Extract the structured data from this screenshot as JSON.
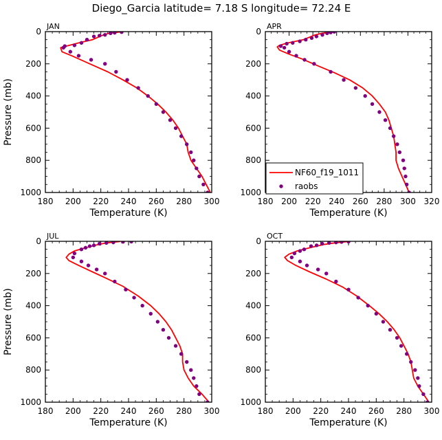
{
  "figure_title": "Diego_Garcia   latitude= 7.18 S longitude= 72.24 E",
  "legend": {
    "model_label": "NF60_f19_1011",
    "obs_label": "raobs",
    "placement": "lower-left of APR panel"
  },
  "colors": {
    "model": "#ff0000",
    "obs": "#800080",
    "axis": "#000000"
  },
  "chart_data": [
    {
      "type": "line+scatter",
      "title": "JAN",
      "xlabel": "Temperature (K)",
      "ylabel": "Pressure (mb)",
      "xlim": [
        180,
        300
      ],
      "ylim": [
        1000,
        0
      ],
      "xticks": [
        180,
        200,
        220,
        240,
        260,
        280,
        300
      ],
      "yticks": [
        0,
        200,
        400,
        600,
        800,
        1000
      ],
      "series": [
        {
          "name": "NF60_f19_1011",
          "kind": "line",
          "points": [
            [
              235,
              1
            ],
            [
              226,
              10
            ],
            [
              222,
              20
            ],
            [
              214,
              50
            ],
            [
              204,
              70
            ],
            [
              195,
              90
            ],
            [
              191,
              100
            ],
            [
              192,
              125
            ],
            [
              199,
              150
            ],
            [
              212,
              200
            ],
            [
              225,
              250
            ],
            [
              236,
              300
            ],
            [
              246,
              350
            ],
            [
              254,
              400
            ],
            [
              261,
              450
            ],
            [
              267,
              500
            ],
            [
              272,
              550
            ],
            [
              276,
              600
            ],
            [
              279,
              650
            ],
            [
              282,
              700
            ],
            [
              283,
              750
            ],
            [
              285,
              800
            ],
            [
              289,
              850
            ],
            [
              293,
              900
            ],
            [
              296,
              950
            ],
            [
              299,
              1000
            ]
          ]
        },
        {
          "name": "raobs",
          "kind": "scatter",
          "points": [
            [
              235,
              3
            ],
            [
              230,
              7
            ],
            [
              227,
              10
            ],
            [
              223,
              20
            ],
            [
              219,
              25
            ],
            [
              215,
              30
            ],
            [
              210,
              50
            ],
            [
              206,
              70
            ],
            [
              201,
              85
            ],
            [
              194,
              90
            ],
            [
              193,
              100
            ],
            [
              198,
              125
            ],
            [
              204,
              150
            ],
            [
              213,
              175
            ],
            [
              223,
              200
            ],
            [
              231,
              250
            ],
            [
              239,
              300
            ],
            [
              247,
              350
            ],
            [
              254,
              400
            ],
            [
              260,
              450
            ],
            [
              265,
              500
            ],
            [
              270,
              550
            ],
            [
              274,
              600
            ],
            [
              278,
              650
            ],
            [
              282,
              700
            ],
            [
              285,
              750
            ],
            [
              287,
              800
            ],
            [
              289,
              850
            ],
            [
              291,
              900
            ],
            [
              294,
              950
            ],
            [
              297,
              1000
            ]
          ]
        }
      ]
    },
    {
      "type": "line+scatter",
      "title": "APR",
      "xlabel": "Temperature (K)",
      "ylabel": "",
      "xlim": [
        180,
        320
      ],
      "ylim": [
        1000,
        0
      ],
      "xticks": [
        180,
        200,
        220,
        240,
        260,
        280,
        300,
        320
      ],
      "yticks": [
        0,
        200,
        400,
        600,
        800,
        1000
      ],
      "series": [
        {
          "name": "NF60_f19_1011",
          "kind": "line",
          "points": [
            [
              238,
              1
            ],
            [
              228,
              10
            ],
            [
              222,
              20
            ],
            [
              212,
              50
            ],
            [
              199,
              70
            ],
            [
              192,
              85
            ],
            [
              190,
              95
            ],
            [
              192,
              115
            ],
            [
              200,
              140
            ],
            [
              211,
              170
            ],
            [
              225,
              215
            ],
            [
              238,
              255
            ],
            [
              251,
              300
            ],
            [
              262,
              350
            ],
            [
              270,
              400
            ],
            [
              276,
              450
            ],
            [
              281,
              500
            ],
            [
              284,
              550
            ],
            [
              286,
              600
            ],
            [
              288,
              650
            ],
            [
              289,
              700
            ],
            [
              290,
              750
            ],
            [
              290,
              800
            ],
            [
              292,
              850
            ],
            [
              295,
              900
            ],
            [
              298,
              950
            ],
            [
              301,
              1000
            ]
          ]
        },
        {
          "name": "raobs",
          "kind": "scatter",
          "points": [
            [
              238,
              1
            ],
            [
              235,
              5
            ],
            [
              232,
              10
            ],
            [
              228,
              20
            ],
            [
              223,
              30
            ],
            [
              219,
              40
            ],
            [
              214,
              50
            ],
            [
              209,
              60
            ],
            [
              203,
              70
            ],
            [
              198,
              75
            ],
            [
              193,
              90
            ],
            [
              196,
              100
            ],
            [
              200,
              125
            ],
            [
              206,
              150
            ],
            [
              213,
              175
            ],
            [
              221,
              200
            ],
            [
              235,
              250
            ],
            [
              246,
              300
            ],
            [
              256,
              350
            ],
            [
              264,
              400
            ],
            [
              270,
              450
            ],
            [
              276,
              500
            ],
            [
              281,
              550
            ],
            [
              285,
              600
            ],
            [
              288,
              650
            ],
            [
              291,
              700
            ],
            [
              293,
              750
            ],
            [
              296,
              800
            ],
            [
              297,
              850
            ],
            [
              298,
              900
            ],
            [
              299,
              950
            ],
            [
              301,
              1000
            ]
          ]
        }
      ]
    },
    {
      "type": "line+scatter",
      "title": "JUL",
      "xlabel": "Temperature (K)",
      "ylabel": "Pressure (mb)",
      "xlim": [
        180,
        300
      ],
      "ylim": [
        1000,
        0
      ],
      "xticks": [
        180,
        200,
        220,
        240,
        260,
        280,
        300
      ],
      "yticks": [
        0,
        200,
        400,
        600,
        800,
        1000
      ],
      "series": [
        {
          "name": "NF60_f19_1011",
          "kind": "line",
          "points": [
            [
              234,
              1
            ],
            [
              224,
              10
            ],
            [
              218,
              20
            ],
            [
              209,
              40
            ],
            [
              201,
              60
            ],
            [
              197,
              80
            ],
            [
              195,
              100
            ],
            [
              197,
              120
            ],
            [
              204,
              150
            ],
            [
              214,
              190
            ],
            [
              224,
              230
            ],
            [
              236,
              280
            ],
            [
              247,
              340
            ],
            [
              256,
              400
            ],
            [
              262,
              450
            ],
            [
              267,
              500
            ],
            [
              271,
              550
            ],
            [
              274,
              600
            ],
            [
              277,
              650
            ],
            [
              279,
              700
            ],
            [
              279,
              750
            ],
            [
              280,
              800
            ],
            [
              283,
              850
            ],
            [
              287,
              900
            ],
            [
              293,
              950
            ],
            [
              298,
              1000
            ]
          ]
        },
        {
          "name": "raobs",
          "kind": "scatter",
          "points": [
            [
              242,
              2
            ],
            [
              236,
              3
            ],
            [
              229,
              7
            ],
            [
              224,
              10
            ],
            [
              219,
              15
            ],
            [
              215,
              25
            ],
            [
              212,
              30
            ],
            [
              209,
              40
            ],
            [
              206,
              50
            ],
            [
              201,
              75
            ],
            [
              200,
              100
            ],
            [
              206,
              125
            ],
            [
              211,
              150
            ],
            [
              217,
              175
            ],
            [
              223,
              200
            ],
            [
              230,
              250
            ],
            [
              238,
              300
            ],
            [
              244,
              350
            ],
            [
              250,
              400
            ],
            [
              256,
              450
            ],
            [
              261,
              500
            ],
            [
              265,
              550
            ],
            [
              269,
              600
            ],
            [
              274,
              650
            ],
            [
              278,
              700
            ],
            [
              282,
              750
            ],
            [
              285,
              800
            ],
            [
              287,
              850
            ],
            [
              289,
              900
            ],
            [
              291,
              950
            ],
            [
              297,
              1000
            ]
          ]
        }
      ]
    },
    {
      "type": "line+scatter",
      "title": "OCT",
      "xlabel": "Temperature (K)",
      "ylabel": "",
      "xlim": [
        180,
        300
      ],
      "ylim": [
        1000,
        0
      ],
      "xticks": [
        180,
        200,
        220,
        240,
        260,
        280,
        300
      ],
      "yticks": [
        0,
        200,
        400,
        600,
        800,
        1000
      ],
      "series": [
        {
          "name": "NF60_f19_1011",
          "kind": "line",
          "points": [
            [
              240,
              1
            ],
            [
              230,
              10
            ],
            [
              222,
              20
            ],
            [
              212,
              40
            ],
            [
              203,
              60
            ],
            [
              197,
              80
            ],
            [
              194,
              100
            ],
            [
              196,
              120
            ],
            [
              202,
              150
            ],
            [
              212,
              190
            ],
            [
              224,
              235
            ],
            [
              236,
              285
            ],
            [
              246,
              340
            ],
            [
              255,
              400
            ],
            [
              262,
              450
            ],
            [
              268,
              500
            ],
            [
              273,
              550
            ],
            [
              277,
              600
            ],
            [
              280,
              650
            ],
            [
              283,
              700
            ],
            [
              285,
              750
            ],
            [
              286,
              800
            ],
            [
              287,
              850
            ],
            [
              290,
              900
            ],
            [
              294,
              950
            ],
            [
              298,
              1000
            ]
          ]
        },
        {
          "name": "raobs",
          "kind": "scatter",
          "points": [
            [
              240,
              2
            ],
            [
              235,
              4
            ],
            [
              231,
              7
            ],
            [
              226,
              10
            ],
            [
              221,
              15
            ],
            [
              217,
              25
            ],
            [
              213,
              30
            ],
            [
              208,
              50
            ],
            [
              205,
              60
            ],
            [
              201,
              75
            ],
            [
              199,
              100
            ],
            [
              205,
              125
            ],
            [
              210,
              150
            ],
            [
              218,
              175
            ],
            [
              224,
              200
            ],
            [
              231,
              250
            ],
            [
              240,
              300
            ],
            [
              247,
              350
            ],
            [
              254,
              400
            ],
            [
              260,
              450
            ],
            [
              265,
              500
            ],
            [
              270,
              550
            ],
            [
              275,
              600
            ],
            [
              278,
              650
            ],
            [
              282,
              700
            ],
            [
              285,
              750
            ],
            [
              288,
              800
            ],
            [
              290,
              850
            ],
            [
              291,
              900
            ],
            [
              294,
              950
            ],
            [
              297,
              1000
            ]
          ]
        }
      ]
    }
  ]
}
